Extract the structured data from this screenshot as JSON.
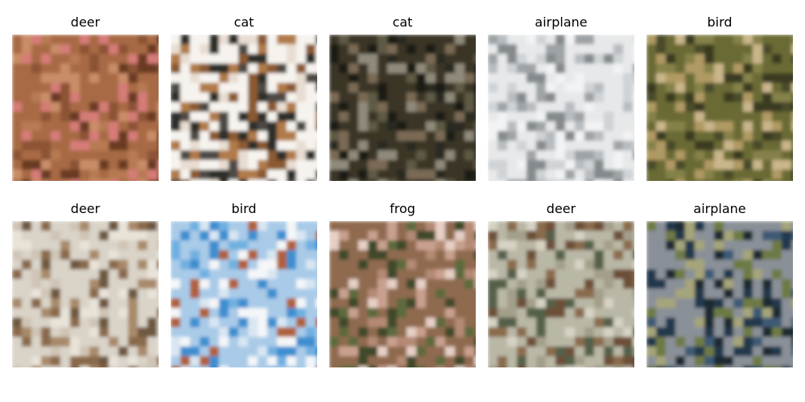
{
  "grid": {
    "images": [
      {
        "label": "deer",
        "description": "blurry brown reddish patch, dark center",
        "palette": [
          "#a86a45",
          "#b77a52",
          "#8c5236",
          "#6b3a24",
          "#c98d68",
          "#d57b77"
        ]
      },
      {
        "label": "cat",
        "description": "white background, brown animal, dark base",
        "palette": [
          "#f6f3ee",
          "#e8ddd2",
          "#b07a4a",
          "#8b5a33",
          "#4d4a45",
          "#2f2e2b"
        ]
      },
      {
        "label": "cat",
        "description": "dark greenish-brown image with grey cat",
        "palette": [
          "#3a3526",
          "#5f5a44",
          "#7a6a55",
          "#2b2a22",
          "#8f8a7a",
          "#1f1d18"
        ]
      },
      {
        "label": "airplane",
        "description": "pale grey sky and grey shapes",
        "palette": [
          "#e6e8ea",
          "#cfd3d6",
          "#b7bcc0",
          "#9ea3a6",
          "#858a8d",
          "#f2f3f4"
        ]
      },
      {
        "label": "bird",
        "description": "olive green and tan textured image",
        "palette": [
          "#6b6a35",
          "#85824a",
          "#b09a64",
          "#4a4c2a",
          "#c9b68a",
          "#3a3b20"
        ]
      },
      {
        "label": "deer",
        "description": "light beige background, brown vertical shapes",
        "palette": [
          "#d9d3c8",
          "#cfc5b5",
          "#a88a6a",
          "#8a6b4c",
          "#e8e2d8",
          "#6e5840"
        ]
      },
      {
        "label": "bird",
        "description": "light blue sky with white and brown shapes",
        "palette": [
          "#a9cbe8",
          "#6fb0e0",
          "#d8e6f2",
          "#b0603a",
          "#f4f6f8",
          "#3e8fd0"
        ]
      },
      {
        "label": "frog",
        "description": "brown, pink and green texture",
        "palette": [
          "#8f6a50",
          "#b48a74",
          "#5d6a3c",
          "#c9a08e",
          "#3f4a2a",
          "#e6cfc5"
        ]
      },
      {
        "label": "deer",
        "description": "grey-green background with brown animal",
        "palette": [
          "#b9b7a5",
          "#a39f8a",
          "#8a6c4e",
          "#6d5038",
          "#d6d2c4",
          "#55614a"
        ]
      },
      {
        "label": "airplane",
        "description": "grey sky with dark blue shapes over green",
        "palette": [
          "#8a9098",
          "#3e5a75",
          "#23384e",
          "#6e7a44",
          "#a6a57a",
          "#1d2a30"
        ]
      }
    ]
  }
}
